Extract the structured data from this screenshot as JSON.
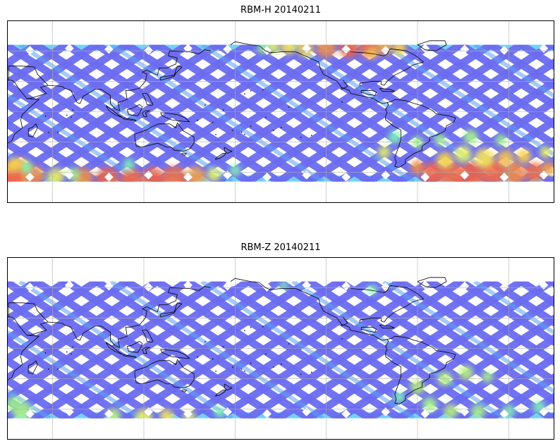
{
  "panels": [
    {
      "title": "RBM-H 20140211",
      "variable": "RBM-H",
      "date": "20140211"
    },
    {
      "title": "RBM-Z 20140211",
      "variable": "RBM-Z",
      "date": "20140211"
    }
  ],
  "map": {
    "projection": "equirectangular",
    "lon_range": [
      30,
      390
    ],
    "lat_range": [
      -90,
      90
    ],
    "data_lat_range": [
      -69,
      66
    ],
    "gridlines": true,
    "colormap": "jet",
    "swath_color": "#6b6cf0",
    "coast_color": "#000000"
  }
}
